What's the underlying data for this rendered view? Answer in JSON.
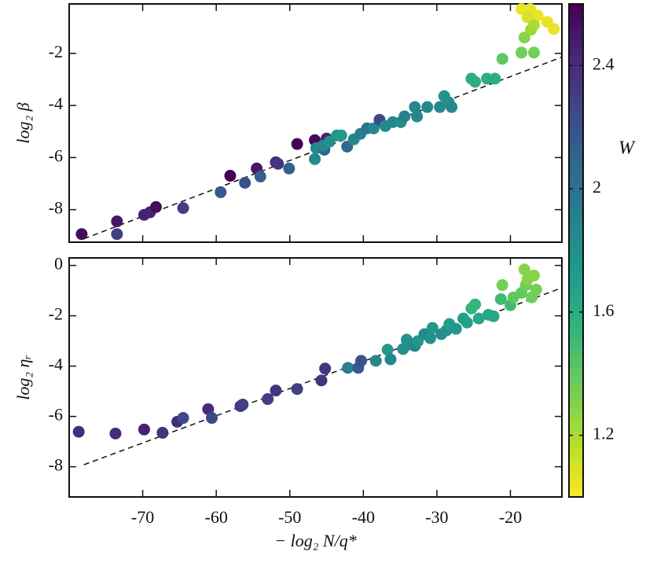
{
  "chart_data": [
    {
      "type": "scatter",
      "ylabel": "log₂ β",
      "xlim": [
        -80,
        -13
      ],
      "ylim": [
        -9.25,
        -0.1
      ],
      "yticks": [
        -8,
        -6,
        -4,
        -2
      ],
      "colormap": "viridis_r",
      "series": [
        {
          "x": [
            -78.3,
            -73.5,
            -73.5,
            -69.8,
            -69.0,
            -68.2,
            -64.5,
            -59.4,
            -58.1,
            -56.1,
            -54.5,
            -54.0,
            -51.9,
            -51.6,
            -50.1,
            -49.0,
            -46.6,
            -46.6,
            -46.4,
            -45.3,
            -45.0,
            -45.5,
            -44.6,
            -43.6,
            -43.0,
            -42.2,
            -41.3,
            -40.4,
            -39.5,
            -38.6,
            -37.8,
            -37.0,
            -36.0,
            -34.9,
            -34.4,
            -33.0,
            -32.7,
            -31.3,
            -29.6,
            -29.0,
            -28.4,
            -28.0,
            -25.3,
            -24.8,
            -23.2,
            -22.1,
            -21.1,
            -18.5,
            -18.1,
            -16.8,
            -17.2,
            -18.5,
            -17.3,
            -16.3,
            -15.0,
            -14.1,
            -17.7,
            -16.8
          ],
          "values": [
            -8.94,
            -8.94,
            -8.45,
            -8.2,
            -8.1,
            -7.9,
            -7.94,
            -7.33,
            -6.7,
            -6.97,
            -6.42,
            -6.73,
            -6.18,
            -6.24,
            -6.42,
            -5.48,
            -5.33,
            -6.06,
            -5.64,
            -5.7,
            -5.27,
            -5.55,
            -5.39,
            -5.15,
            -5.15,
            -5.58,
            -5.3,
            -5.09,
            -4.88,
            -4.88,
            -4.55,
            -4.79,
            -4.64,
            -4.64,
            -4.42,
            -4.06,
            -4.42,
            -4.06,
            -4.06,
            -3.64,
            -3.88,
            -4.06,
            -2.97,
            -3.09,
            -2.97,
            -2.97,
            -2.21,
            -1.97,
            -1.39,
            -1.97,
            -1.09,
            -0.3,
            -0.3,
            -0.55,
            -0.79,
            -1.06,
            -0.61,
            -0.91
          ],
          "w": [
            2.55,
            2.3,
            2.5,
            2.45,
            2.45,
            2.55,
            2.3,
            2.15,
            2.6,
            2.2,
            2.5,
            2.1,
            2.4,
            2.35,
            2.1,
            2.6,
            2.55,
            1.85,
            1.85,
            2.1,
            2.45,
            1.85,
            1.8,
            1.75,
            1.75,
            2.05,
            1.85,
            1.9,
            2.0,
            1.85,
            2.25,
            1.85,
            1.85,
            1.8,
            1.9,
            1.85,
            1.85,
            1.85,
            1.85,
            1.8,
            1.8,
            1.85,
            1.6,
            1.6,
            1.6,
            1.6,
            1.4,
            1.35,
            1.3,
            1.35,
            1.25,
            1.05,
            1.05,
            1.05,
            1.05,
            1.05,
            1.1,
            1.2
          ]
        }
      ],
      "fit": {
        "x": [
          -78,
          -13.1
        ],
        "values": [
          -9.12,
          -2.15
        ]
      }
    },
    {
      "type": "scatter",
      "ylabel": "log₂ ηᵣ",
      "xlabel": "− log₂ N/q*",
      "xlim": [
        -80,
        -13
      ],
      "ylim": [
        -9.2,
        0.3
      ],
      "xticks": [
        -70,
        -60,
        -50,
        -40,
        -30,
        -20
      ],
      "yticks": [
        -8,
        -6,
        -4,
        -2,
        0
      ],
      "colormap": "viridis_r",
      "series": [
        {
          "x": [
            -78.7,
            -73.7,
            -69.8,
            -67.3,
            -65.3,
            -64.5,
            -61.1,
            -60.6,
            -56.7,
            -56.4,
            -53.0,
            -51.9,
            -49.0,
            -45.7,
            -45.2,
            -42.1,
            -40.7,
            -40.3,
            -38.3,
            -36.7,
            -36.3,
            -34.6,
            -34.1,
            -33.6,
            -33.0,
            -32.6,
            -31.7,
            -30.9,
            -30.6,
            -29.4,
            -28.7,
            -28.3,
            -27.4,
            -26.4,
            -25.9,
            -25.3,
            -24.8,
            -24.3,
            -23.0,
            -22.3,
            -21.3,
            -20.0,
            -21.1,
            -19.6,
            -18.5,
            -17.9,
            -18.1,
            -17.7,
            -16.8,
            -16.5,
            -17.1
          ],
          "values": [
            -6.61,
            -6.68,
            -6.52,
            -6.65,
            -6.21,
            -6.06,
            -5.71,
            -6.06,
            -5.59,
            -5.53,
            -5.31,
            -4.97,
            -4.91,
            -4.57,
            -4.1,
            -4.07,
            -4.07,
            -3.79,
            -3.79,
            -3.35,
            -3.73,
            -3.32,
            -2.95,
            -3.14,
            -3.2,
            -3.01,
            -2.73,
            -2.89,
            -2.48,
            -2.73,
            -2.58,
            -2.33,
            -2.52,
            -2.11,
            -2.27,
            -1.71,
            -1.55,
            -2.11,
            -1.96,
            -2.02,
            -1.34,
            -1.58,
            -0.78,
            -1.27,
            -1.09,
            -0.78,
            -0.16,
            -0.56,
            -0.4,
            -0.96,
            -1.27
          ],
          "w": [
            2.4,
            2.4,
            2.45,
            2.35,
            2.4,
            2.25,
            2.4,
            2.25,
            2.35,
            2.3,
            2.3,
            2.35,
            2.3,
            2.35,
            2.35,
            1.9,
            2.15,
            2.2,
            1.85,
            1.75,
            1.85,
            1.8,
            1.8,
            1.8,
            1.85,
            1.75,
            1.85,
            1.8,
            1.75,
            1.8,
            1.8,
            1.7,
            1.75,
            1.7,
            1.7,
            1.55,
            1.55,
            1.65,
            1.65,
            1.65,
            1.5,
            1.5,
            1.35,
            1.4,
            1.4,
            1.35,
            1.3,
            1.3,
            1.3,
            1.35,
            1.35
          ]
        }
      ],
      "fit": {
        "x": [
          -78,
          -13.1
        ],
        "values": [
          -7.92,
          -0.9
        ]
      }
    },
    {
      "type": "colorbar",
      "label": "W",
      "lim": [
        1.0,
        2.6
      ],
      "ticks": [
        1.2,
        1.6,
        2,
        2.4
      ],
      "colormap": "viridis_r"
    }
  ]
}
